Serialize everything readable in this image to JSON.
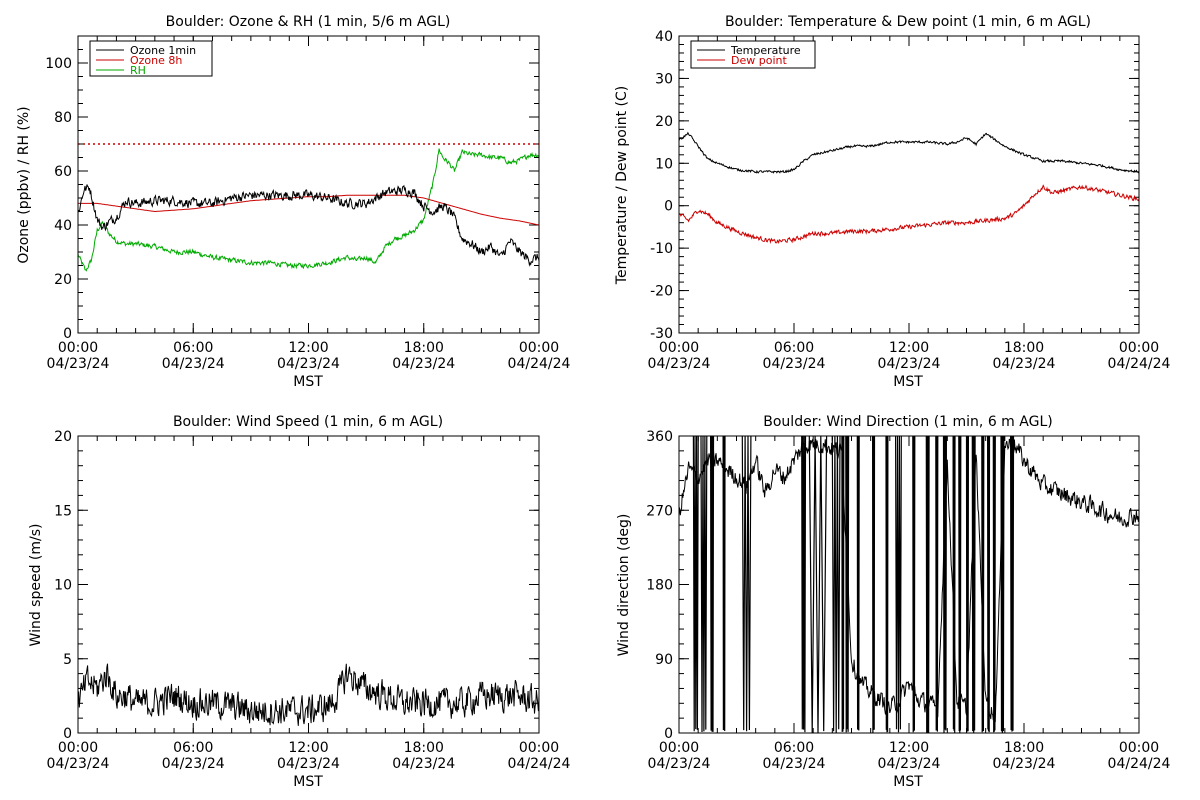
{
  "chart_data": [
    {
      "id": "ozone_rh",
      "type": "line",
      "title": "Boulder: Ozone & RH (1 min, 5/6 m AGL)",
      "xlabel": "MST",
      "ylabel": "Ozone (ppbv) / RH (%)",
      "xlim": [
        0,
        24
      ],
      "ylim": [
        0,
        110
      ],
      "yticks": [
        0,
        20,
        40,
        60,
        80,
        100
      ],
      "xticks": [
        {
          "t": 0,
          "time": "00:00",
          "date": "04/23/24"
        },
        {
          "t": 6,
          "time": "06:00",
          "date": "04/23/24"
        },
        {
          "t": 12,
          "time": "12:00",
          "date": "04/23/24"
        },
        {
          "t": 18,
          "time": "18:00",
          "date": "04/23/24"
        },
        {
          "t": 24,
          "time": "00:00",
          "date": "04/24/24"
        }
      ],
      "legend_position": "top-left",
      "reference_line": {
        "y": 70,
        "color": "#cc0000",
        "style": "dotted"
      },
      "series": [
        {
          "name": "Ozone 1min",
          "color": "#000000",
          "noise": 1.6,
          "x": [
            0,
            0.3,
            0.6,
            1,
            1.3,
            1.6,
            2,
            2.5,
            3,
            4,
            5,
            6,
            7,
            8,
            9,
            10,
            11,
            12,
            13,
            14,
            15,
            16,
            17,
            17.5,
            18,
            18.5,
            19,
            19.5,
            20,
            20.5,
            21,
            21.5,
            22,
            22.5,
            23,
            23.5,
            24
          ],
          "y": [
            44,
            53,
            54,
            42,
            39,
            41,
            43,
            49,
            48,
            49,
            49,
            48,
            48,
            50,
            51,
            51,
            51,
            51,
            50,
            48,
            48,
            52,
            53,
            52,
            47,
            45,
            47,
            44,
            35,
            33,
            30,
            32,
            28,
            34,
            30,
            27,
            28
          ]
        },
        {
          "name": "Ozone 8h",
          "color": "#cc0000",
          "noise": 0,
          "x": [
            0,
            1,
            2,
            3,
            4,
            5,
            6,
            7,
            8,
            9,
            10,
            11,
            12,
            13,
            14,
            15,
            16,
            17,
            18,
            19,
            20,
            21,
            22,
            23,
            24
          ],
          "y": [
            48,
            48,
            47,
            46,
            45,
            45.5,
            46,
            47,
            48,
            49,
            49.5,
            50,
            50.5,
            50.5,
            51,
            51,
            51,
            51,
            50,
            48,
            46,
            44,
            42.5,
            41.5,
            40
          ]
        },
        {
          "name": "RH",
          "color": "#00aa00",
          "noise": 0.8,
          "x": [
            0,
            0.4,
            0.7,
            1,
            1.3,
            1.6,
            2,
            2.5,
            3,
            4,
            5,
            6,
            7,
            8,
            9,
            10,
            11,
            12,
            13,
            14,
            14.5,
            15,
            15.5,
            16,
            16.5,
            17,
            17.5,
            18,
            18.5,
            18.8,
            19,
            19.3,
            19.6,
            20,
            20.5,
            21,
            21.5,
            22,
            22.5,
            23,
            23.5,
            24
          ],
          "y": [
            29,
            23,
            27,
            38,
            41,
            37,
            34,
            33,
            33,
            32,
            30,
            30,
            28,
            27,
            26,
            26,
            25,
            25,
            26,
            28,
            27,
            28,
            26,
            32,
            35,
            36,
            38,
            42,
            56,
            68,
            65,
            63,
            60,
            67,
            66,
            66,
            65,
            65,
            63,
            64,
            66,
            66
          ]
        }
      ]
    },
    {
      "id": "temp_dew",
      "type": "line",
      "title": "Boulder: Temperature & Dew point (1 min, 6 m AGL)",
      "xlabel": "MST",
      "ylabel": "Temperature / Dew point (C)",
      "xlim": [
        0,
        24
      ],
      "ylim": [
        -30,
        40
      ],
      "yticks": [
        -30,
        -20,
        -10,
        0,
        10,
        20,
        30,
        40
      ],
      "xticks": [
        {
          "t": 0,
          "time": "00:00",
          "date": "04/23/24"
        },
        {
          "t": 6,
          "time": "06:00",
          "date": "04/23/24"
        },
        {
          "t": 12,
          "time": "12:00",
          "date": "04/23/24"
        },
        {
          "t": 18,
          "time": "18:00",
          "date": "04/23/24"
        },
        {
          "t": 24,
          "time": "00:00",
          "date": "04/24/24"
        }
      ],
      "legend_position": "top-left",
      "series": [
        {
          "name": "Temperature",
          "color": "#000000",
          "noise": 0.25,
          "x": [
            0,
            0.5,
            1,
            1.5,
            2,
            3,
            4,
            5,
            5.5,
            6,
            6.5,
            7,
            8,
            9,
            10,
            11,
            12,
            13,
            14,
            14.5,
            15,
            15.5,
            16,
            16.5,
            17,
            18,
            19,
            20,
            21,
            22,
            23,
            24
          ],
          "y": [
            15.5,
            17,
            14,
            11,
            10,
            8.5,
            8,
            8,
            8,
            8.5,
            10.5,
            12,
            13,
            14,
            14,
            15,
            15,
            15,
            14.5,
            15,
            16,
            14.5,
            17,
            15.5,
            14,
            12,
            10.5,
            10.5,
            10,
            9.5,
            8.5,
            8
          ]
        },
        {
          "name": "Dew point",
          "color": "#cc0000",
          "noise": 0.45,
          "x": [
            0,
            0.5,
            1,
            1.5,
            2,
            3,
            4,
            5,
            6,
            7,
            8,
            9,
            10,
            11,
            12,
            13,
            14,
            15,
            16,
            17,
            17.5,
            18,
            18.5,
            19,
            19.5,
            20,
            21,
            22,
            23,
            24
          ],
          "y": [
            -2,
            -3.5,
            -1,
            -2,
            -4,
            -6,
            -7.5,
            -8.5,
            -8,
            -6.5,
            -6.5,
            -6,
            -6,
            -5.5,
            -5,
            -4.5,
            -4,
            -4,
            -3.5,
            -3,
            -2,
            0,
            2.5,
            4.5,
            3,
            3.5,
            4.5,
            3.5,
            2.5,
            1.5
          ]
        }
      ]
    },
    {
      "id": "wind_speed",
      "type": "line",
      "title": "Boulder: Wind Speed (1 min, 6 m AGL)",
      "xlabel": "MST",
      "ylabel": "Wind speed (m/s)",
      "xlim": [
        0,
        24
      ],
      "ylim": [
        0,
        20
      ],
      "yticks": [
        0,
        5,
        10,
        15,
        20
      ],
      "xticks": [
        {
          "t": 0,
          "time": "00:00",
          "date": "04/23/24"
        },
        {
          "t": 6,
          "time": "06:00",
          "date": "04/23/24"
        },
        {
          "t": 12,
          "time": "12:00",
          "date": "04/23/24"
        },
        {
          "t": 18,
          "time": "18:00",
          "date": "04/23/24"
        },
        {
          "t": 24,
          "time": "00:00",
          "date": "04/24/24"
        }
      ],
      "series": [
        {
          "name": "Wind speed",
          "color": "#000000",
          "noise": 0.9,
          "x": [
            0,
            0.5,
            1,
            1.5,
            2,
            2.5,
            3,
            4,
            5,
            6,
            7,
            8,
            9,
            10,
            11,
            12,
            13,
            13.5,
            14,
            14.5,
            15,
            16,
            17,
            18,
            19,
            20,
            21,
            22,
            23,
            24
          ],
          "y": [
            2,
            3.5,
            3,
            4,
            2.5,
            2.5,
            2,
            2,
            2.5,
            2,
            2,
            1.8,
            1.5,
            1.5,
            1.5,
            1.5,
            1.8,
            2.5,
            4,
            3.5,
            3,
            2.5,
            2,
            2,
            2,
            2,
            2.5,
            2.5,
            2.5,
            2
          ]
        }
      ]
    },
    {
      "id": "wind_dir",
      "type": "line",
      "title": "Boulder: Wind Direction (1 min, 6 m AGL)",
      "xlabel": "MST",
      "ylabel": "Wind direction (deg)",
      "xlim": [
        0,
        24
      ],
      "ylim": [
        0,
        360
      ],
      "yticks": [
        0,
        90,
        180,
        270,
        360
      ],
      "xticks": [
        {
          "t": 0,
          "time": "00:00",
          "date": "04/23/24"
        },
        {
          "t": 6,
          "time": "06:00",
          "date": "04/23/24"
        },
        {
          "t": 12,
          "time": "12:00",
          "date": "04/23/24"
        },
        {
          "t": 18,
          "time": "18:00",
          "date": "04/23/24"
        },
        {
          "t": 24,
          "time": "00:00",
          "date": "04/24/24"
        }
      ],
      "series": [
        {
          "name": "Wind direction",
          "color": "#000000",
          "noise": 10,
          "x": [
            0,
            0.5,
            1,
            1.5,
            2,
            2.5,
            3,
            3.5,
            4,
            4.5,
            5,
            5.5,
            6,
            6.5,
            7,
            7.5,
            8,
            8.5,
            9,
            9.5,
            10,
            10.5,
            11,
            11.5,
            12,
            12.5,
            13,
            13.5,
            14,
            14.5,
            15,
            15.5,
            16,
            16.5,
            17,
            17.5,
            18,
            19,
            20,
            21,
            22,
            23,
            24
          ],
          "y": [
            265,
            320,
            310,
            330,
            330,
            320,
            310,
            300,
            330,
            290,
            320,
            310,
            330,
            350,
            350,
            350,
            345,
            340,
            90,
            60,
            50,
            40,
            30,
            40,
            60,
            40,
            35,
            30,
            330,
            40,
            30,
            340,
            40,
            20,
            350,
            350,
            330,
            300,
            290,
            280,
            270,
            260,
            265
          ]
        }
      ],
      "spikes": [
        [
          0.75,
          1.0
        ],
        [
          1.15,
          1.45
        ],
        [
          1.65,
          1.8
        ],
        [
          2.3,
          2.4
        ],
        [
          3.3,
          3.75
        ],
        [
          6.4,
          6.6
        ],
        [
          6.8,
          7.7
        ],
        [
          8.0,
          8.4
        ],
        [
          8.5,
          8.6
        ],
        [
          8.7,
          8.85
        ],
        [
          9.3,
          9.4
        ],
        [
          10.1,
          10.2
        ],
        [
          10.8,
          10.9
        ],
        [
          11.3,
          11.6
        ],
        [
          12.2,
          12.3
        ],
        [
          12.9,
          13.05
        ],
        [
          13.4,
          13.5
        ],
        [
          13.8,
          13.95
        ],
        [
          14.3,
          14.4
        ],
        [
          14.6,
          14.7
        ],
        [
          15.0,
          15.1
        ],
        [
          15.3,
          15.45
        ],
        [
          15.8,
          15.9
        ],
        [
          16.1,
          16.2
        ],
        [
          16.4,
          16.5
        ],
        [
          16.8,
          16.95
        ],
        [
          17.3,
          17.45
        ]
      ]
    }
  ]
}
